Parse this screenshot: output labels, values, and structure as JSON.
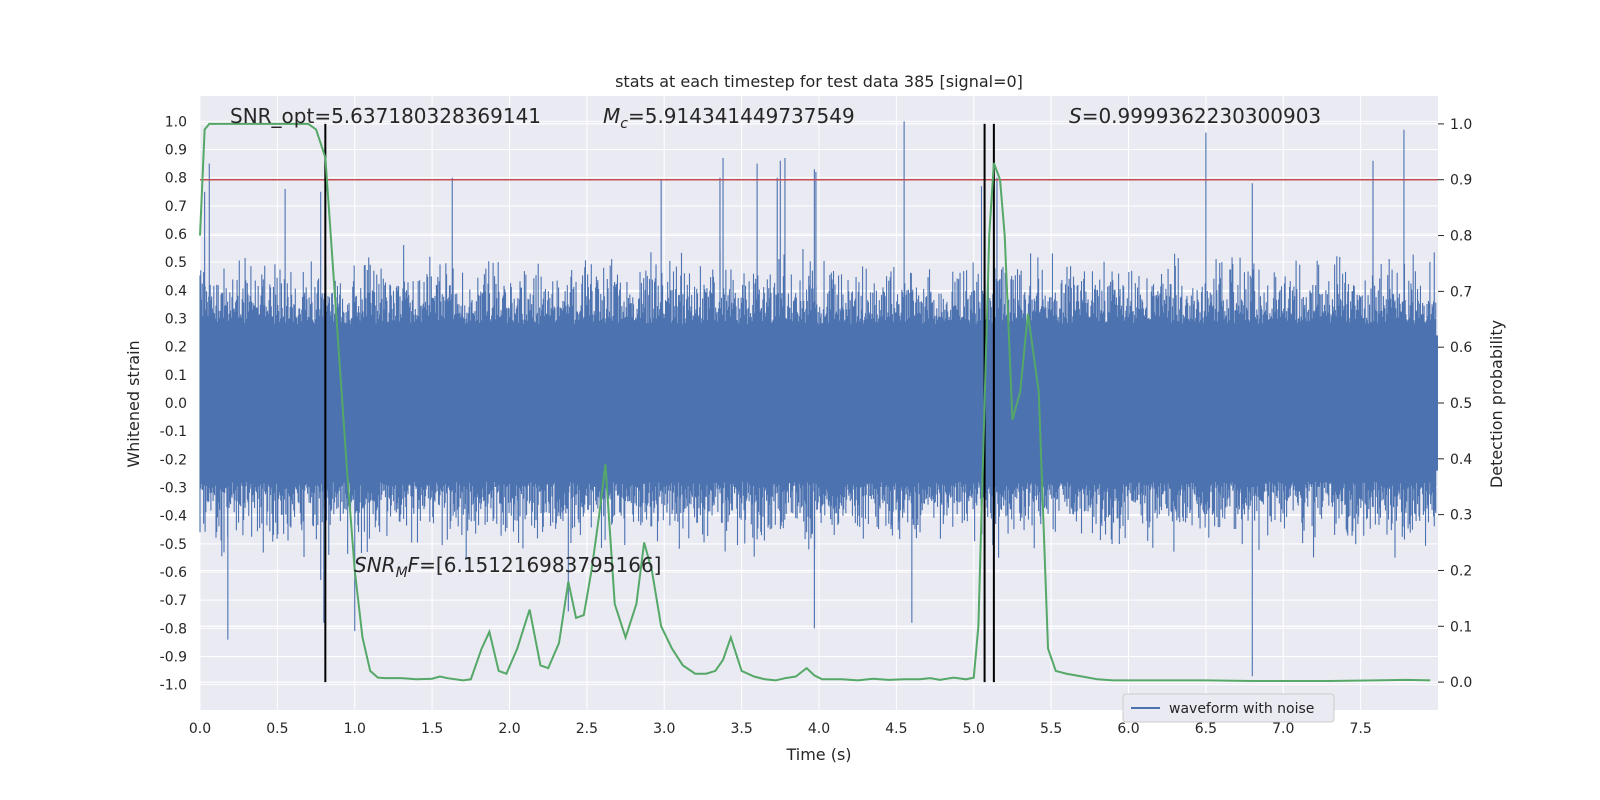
{
  "chart_data": {
    "type": "line",
    "title": "stats at each timestep for test data 385 [signal=0]",
    "xlabel": "Time (s)",
    "ylabel": "Whitened strain",
    "y2label": "Detection probability",
    "xlim": [
      0.0,
      8.0
    ],
    "ylim": [
      -1.09,
      1.09
    ],
    "y2lim": [
      -0.05,
      1.05
    ],
    "xticks": [
      "0.0",
      "0.5",
      "1.0",
      "1.5",
      "2.0",
      "2.5",
      "3.0",
      "3.5",
      "4.0",
      "4.5",
      "5.0",
      "5.5",
      "6.0",
      "6.5",
      "7.0",
      "7.5"
    ],
    "yticks": [
      "1.0",
      "0.9",
      "0.8",
      "0.7",
      "0.6",
      "0.5",
      "0.4",
      "0.3",
      "0.2",
      "0.1",
      "0.0",
      "-0.1",
      "-0.2",
      "-0.3",
      "-0.4",
      "-0.5",
      "-0.6",
      "-0.7",
      "-0.8",
      "-0.9",
      "-1.0"
    ],
    "y2ticks": [
      "1.0",
      "0.9",
      "0.8",
      "0.7",
      "0.6",
      "0.5",
      "0.4",
      "0.3",
      "0.2",
      "0.1",
      "0.0"
    ],
    "grid": true,
    "legend": {
      "placement": "lower-right",
      "entries": [
        "waveform with noise"
      ]
    },
    "annotations": {
      "snr_opt": "SNR_opt=5.637180328369141",
      "mc": "=5.914341449737549",
      "mc_sym": "M",
      "mc_sub": "c",
      "s": "=0.9999362230300903",
      "s_sym": "S",
      "snr_mf": "=[6.151216983795166]",
      "snr_mf_sym": "SNR",
      "snr_mf_sub": "M",
      "snr_mf_sub2": "F"
    },
    "threshold": 0.9,
    "vlines": [
      0.81,
      5.07,
      5.13
    ],
    "series": [
      {
        "name": "waveform with noise",
        "description_color": "#4c72b0",
        "envelope_spikes": [
          [
            0.03,
            0.75
          ],
          [
            0.06,
            0.85
          ],
          [
            0.18,
            -0.84
          ],
          [
            0.55,
            0.76
          ],
          [
            0.78,
            0.75
          ],
          [
            0.8,
            -0.78
          ],
          [
            1.0,
            -0.81
          ],
          [
            1.63,
            0.8
          ],
          [
            2.38,
            -0.74
          ],
          [
            2.98,
            0.79
          ],
          [
            3.36,
            0.8
          ],
          [
            3.38,
            0.87
          ],
          [
            3.6,
            0.85
          ],
          [
            3.73,
            0.8
          ],
          [
            3.75,
            0.86
          ],
          [
            3.78,
            0.87
          ],
          [
            3.97,
            0.83
          ],
          [
            3.98,
            0.82
          ],
          [
            3.97,
            -0.8
          ],
          [
            4.55,
            1.0
          ],
          [
            4.6,
            -0.78
          ],
          [
            5.05,
            0.77
          ],
          [
            5.15,
            0.8
          ],
          [
            6.5,
            0.96
          ],
          [
            6.8,
            0.78
          ],
          [
            6.8,
            -0.97
          ],
          [
            7.58,
            0.86
          ],
          [
            7.78,
            0.97
          ]
        ],
        "noise_level": 0.45
      },
      {
        "name": "",
        "color": "#55a868",
        "axis": "y2",
        "x": [
          0.0,
          0.03,
          0.06,
          0.12,
          0.2,
          0.3,
          0.5,
          0.6,
          0.7,
          0.75,
          0.81,
          0.85,
          0.9,
          0.95,
          1.0,
          1.05,
          1.1,
          1.15,
          1.2,
          1.3,
          1.4,
          1.5,
          1.55,
          1.6,
          1.7,
          1.75,
          1.82,
          1.87,
          1.93,
          1.98,
          2.05,
          2.13,
          2.2,
          2.25,
          2.32,
          2.38,
          2.43,
          2.48,
          2.53,
          2.58,
          2.62,
          2.68,
          2.75,
          2.82,
          2.87,
          2.92,
          2.98,
          3.05,
          3.12,
          3.2,
          3.27,
          3.33,
          3.38,
          3.43,
          3.5,
          3.58,
          3.65,
          3.72,
          3.78,
          3.85,
          3.92,
          3.97,
          4.02,
          4.07,
          4.15,
          4.25,
          4.35,
          4.45,
          4.55,
          4.65,
          4.72,
          4.78,
          4.87,
          4.95,
          5.0,
          5.03,
          5.07,
          5.1,
          5.13,
          5.17,
          5.2,
          5.25,
          5.3,
          5.35,
          5.42,
          5.48,
          5.53,
          5.6,
          5.7,
          5.8,
          5.9,
          6.0,
          6.2,
          6.5,
          6.8,
          7.0,
          7.3,
          7.6,
          7.8,
          7.95
        ],
        "y": [
          0.8,
          0.99,
          1.0,
          1.0,
          1.0,
          1.0,
          1.0,
          1.0,
          1.0,
          0.99,
          0.94,
          0.78,
          0.58,
          0.38,
          0.2,
          0.08,
          0.02,
          0.008,
          0.007,
          0.007,
          0.005,
          0.006,
          0.01,
          0.007,
          0.003,
          0.005,
          0.06,
          0.09,
          0.02,
          0.015,
          0.06,
          0.13,
          0.03,
          0.025,
          0.07,
          0.18,
          0.115,
          0.12,
          0.2,
          0.3,
          0.39,
          0.14,
          0.08,
          0.14,
          0.25,
          0.2,
          0.1,
          0.06,
          0.03,
          0.015,
          0.015,
          0.02,
          0.04,
          0.08,
          0.02,
          0.01,
          0.005,
          0.003,
          0.007,
          0.01,
          0.025,
          0.012,
          0.005,
          0.005,
          0.005,
          0.003,
          0.006,
          0.004,
          0.005,
          0.005,
          0.007,
          0.004,
          0.008,
          0.005,
          0.008,
          0.1,
          0.5,
          0.8,
          0.93,
          0.9,
          0.8,
          0.47,
          0.52,
          0.66,
          0.52,
          0.06,
          0.02,
          0.015,
          0.01,
          0.005,
          0.003,
          0.003,
          0.003,
          0.003,
          0.002,
          0.002,
          0.002,
          0.003,
          0.004,
          0.003
        ]
      }
    ]
  }
}
